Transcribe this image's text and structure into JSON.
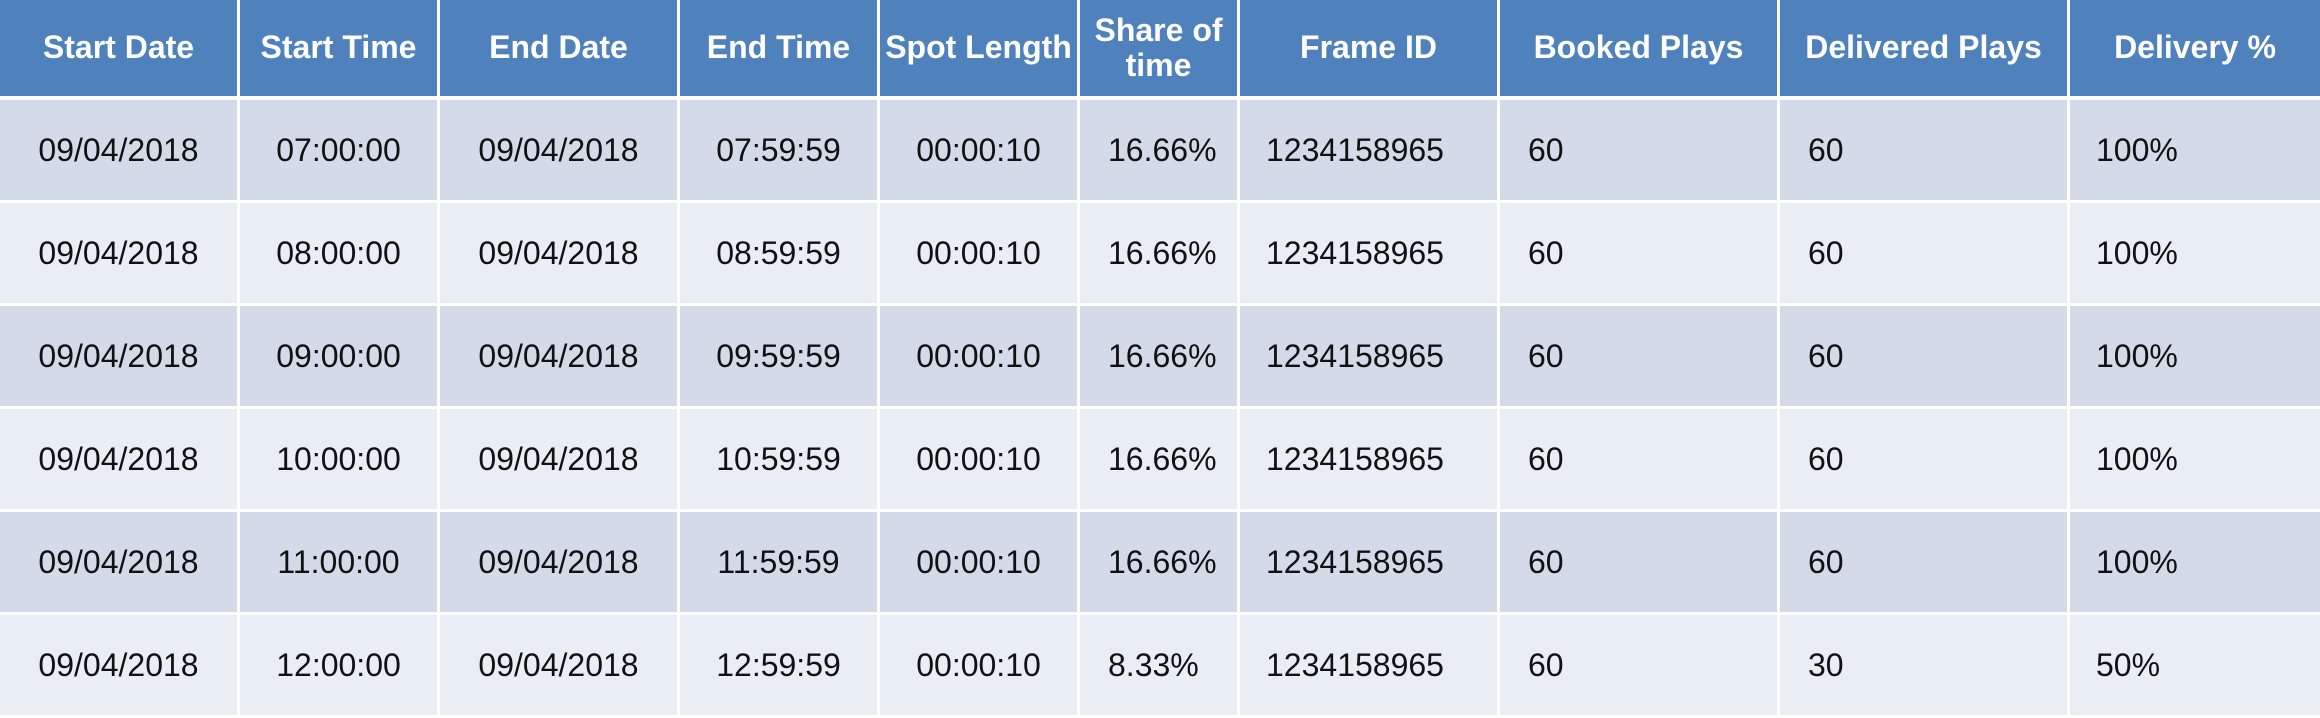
{
  "table": {
    "headers": [
      "Start Date",
      "Start Time",
      "End Date",
      "End Time",
      "Spot Length",
      "Share of time",
      "Frame ID",
      "Booked Plays",
      "Delivered Plays",
      "Delivery %"
    ],
    "rows": [
      [
        "09/04/2018",
        "07:00:00",
        "09/04/2018",
        "07:59:59",
        "00:00:10",
        "16.66%",
        "1234158965",
        "60",
        "60",
        "100%"
      ],
      [
        "09/04/2018",
        "08:00:00",
        "09/04/2018",
        "08:59:59",
        "00:00:10",
        "16.66%",
        "1234158965",
        "60",
        "60",
        "100%"
      ],
      [
        "09/04/2018",
        "09:00:00",
        "09/04/2018",
        "09:59:59",
        "00:00:10",
        "16.66%",
        "1234158965",
        "60",
        "60",
        "100%"
      ],
      [
        "09/04/2018",
        "10:00:00",
        "09/04/2018",
        "10:59:59",
        "00:00:10",
        "16.66%",
        "1234158965",
        "60",
        "60",
        "100%"
      ],
      [
        "09/04/2018",
        "11:00:00",
        "09/04/2018",
        "11:59:59",
        "00:00:10",
        "16.66%",
        "1234158965",
        "60",
        "60",
        "100%"
      ],
      [
        "09/04/2018",
        "12:00:00",
        "09/04/2018",
        "12:59:59",
        "00:00:10",
        "8.33%",
        "1234158965",
        "60",
        "30",
        "50%"
      ]
    ]
  },
  "colors": {
    "header_bg": "#4f81bd",
    "header_text": "#ffffff",
    "row_odd_bg": "#d3dbe8",
    "row_even_bg": "#e9edf4"
  }
}
